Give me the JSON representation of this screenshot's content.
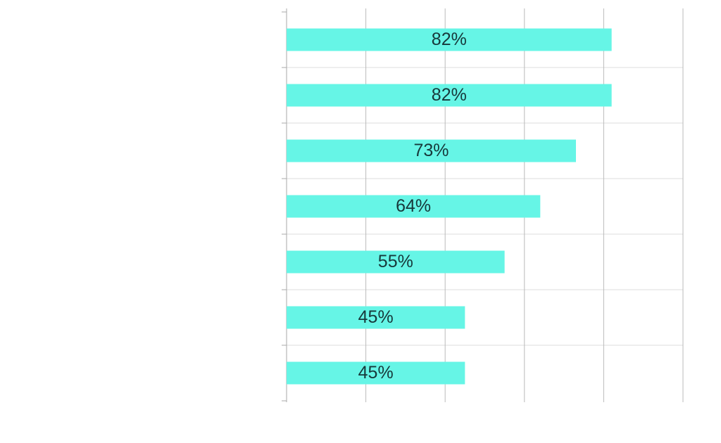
{
  "chart_data": {
    "type": "barh",
    "categories": [
      null,
      null,
      null,
      null,
      null,
      null,
      null
    ],
    "values": [
      82,
      82,
      73,
      64,
      55,
      45,
      45
    ],
    "value_labels": [
      "82%",
      "82%",
      "73%",
      "64%",
      "55%",
      "45%",
      "45%"
    ],
    "color": "#66f5e6",
    "xlim": [
      0,
      100
    ],
    "xticks": [
      0,
      20,
      40,
      60,
      80,
      100
    ],
    "grid": true
  }
}
